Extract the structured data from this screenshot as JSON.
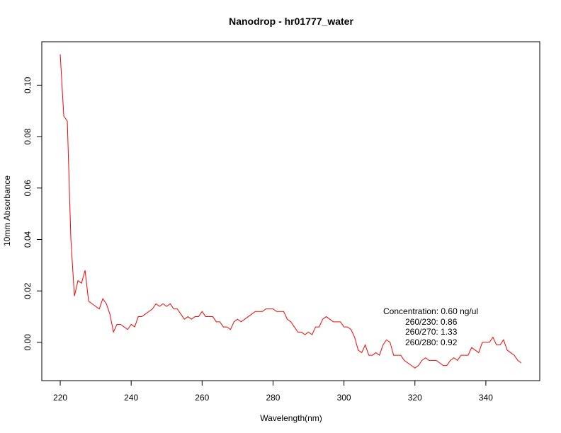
{
  "chart_data": {
    "type": "line",
    "title": "Nanodrop - hr01777_water",
    "xlabel": "Wavelength(nm)",
    "ylabel": "10mm Absorbance",
    "xlim": [
      220,
      350
    ],
    "ylim": [
      -0.01,
      0.112
    ],
    "x_ticks": [
      220,
      240,
      260,
      280,
      300,
      320,
      340
    ],
    "x_tick_labels": [
      "220",
      "240",
      "260",
      "280",
      "300",
      "320",
      "340"
    ],
    "y_ticks": [
      0.0,
      0.02,
      0.04,
      0.06,
      0.08,
      0.1
    ],
    "y_tick_labels": [
      "0.00",
      "0.02",
      "0.04",
      "0.06",
      "0.08",
      "0.10"
    ],
    "grid": false,
    "series": [
      {
        "color": "#ff0000",
        "x": [
          220,
          221,
          222,
          223,
          224,
          225,
          226,
          227,
          228,
          229,
          230,
          231,
          232,
          233,
          234,
          235,
          236,
          237,
          238,
          239,
          240,
          241,
          242,
          243,
          244,
          245,
          246,
          247,
          248,
          249,
          250,
          251,
          252,
          253,
          254,
          255,
          256,
          257,
          258,
          259,
          260,
          261,
          262,
          263,
          264,
          265,
          266,
          267,
          268,
          269,
          270,
          271,
          272,
          273,
          274,
          275,
          276,
          277,
          278,
          279,
          280,
          281,
          282,
          283,
          284,
          285,
          286,
          287,
          288,
          289,
          290,
          291,
          292,
          293,
          294,
          295,
          296,
          297,
          298,
          299,
          300,
          301,
          302,
          303,
          304,
          305,
          306,
          307,
          308,
          309,
          310,
          311,
          312,
          313,
          314,
          315,
          316,
          317,
          318,
          319,
          320,
          321,
          322,
          323,
          324,
          325,
          326,
          327,
          328,
          329,
          330,
          331,
          332,
          333,
          334,
          335,
          336,
          337,
          338,
          339,
          340,
          341,
          342,
          343,
          344,
          345,
          346,
          347,
          348,
          349,
          350
        ],
        "y": [
          0.112,
          0.088,
          0.086,
          0.04,
          0.018,
          0.024,
          0.023,
          0.028,
          0.016,
          0.015,
          0.014,
          0.013,
          0.017,
          0.015,
          0.011,
          0.004,
          0.007,
          0.007,
          0.006,
          0.005,
          0.007,
          0.006,
          0.01,
          0.01,
          0.011,
          0.012,
          0.013,
          0.015,
          0.014,
          0.015,
          0.014,
          0.015,
          0.013,
          0.013,
          0.011,
          0.009,
          0.01,
          0.009,
          0.01,
          0.01,
          0.012,
          0.01,
          0.01,
          0.01,
          0.008,
          0.008,
          0.006,
          0.006,
          0.005,
          0.008,
          0.009,
          0.008,
          0.009,
          0.01,
          0.011,
          0.012,
          0.012,
          0.012,
          0.013,
          0.013,
          0.013,
          0.012,
          0.012,
          0.012,
          0.009,
          0.008,
          0.006,
          0.004,
          0.004,
          0.003,
          0.004,
          0.003,
          0.006,
          0.006,
          0.009,
          0.01,
          0.009,
          0.008,
          0.008,
          0.008,
          0.006,
          0.006,
          0.005,
          0.002,
          -0.003,
          -0.004,
          -0.001,
          -0.005,
          -0.005,
          -0.004,
          -0.005,
          -0.001,
          0.001,
          0.0,
          -0.005,
          -0.005,
          -0.005,
          -0.007,
          -0.008,
          -0.009,
          -0.01,
          -0.009,
          -0.007,
          -0.006,
          -0.007,
          -0.007,
          -0.007,
          -0.008,
          -0.009,
          -0.009,
          -0.007,
          -0.006,
          -0.007,
          -0.005,
          -0.005,
          -0.005,
          -0.002,
          -0.003,
          -0.004,
          0.0,
          0.0,
          0.0,
          0.002,
          -0.001,
          -0.001,
          0.001,
          -0.003,
          -0.004,
          -0.005,
          -0.007,
          -0.008
        ]
      }
    ],
    "annotations": [
      "Concentration: 0.60 ng/ul",
      "260/230: 0.86",
      "260/270: 1.33",
      "260/280: 0.92"
    ]
  }
}
